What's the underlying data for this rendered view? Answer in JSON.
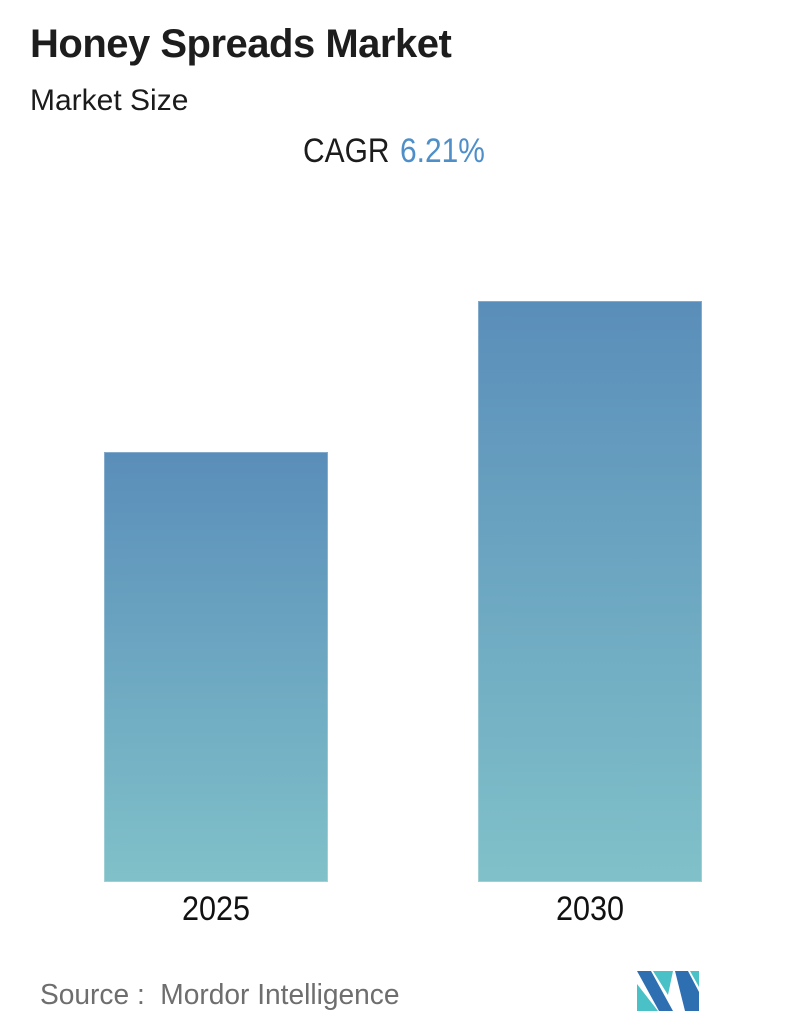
{
  "header": {
    "title": "Honey Spreads Market",
    "subtitle": "Market Size"
  },
  "annotation": {
    "cagr_label": "CAGR",
    "cagr_value": "6.21%"
  },
  "chart_data": {
    "type": "bar",
    "title": "Honey Spreads Market",
    "subtitle": "Market Size",
    "annotation": "CAGR 6.21%",
    "cagr_percent": 6.21,
    "categories": [
      "2025",
      "2030"
    ],
    "values": [
      1.0,
      1.352
    ],
    "values_note": "bars are unlabeled; heights are relative, 2030 ≈ 2025 × (1 + 6.21%)^5",
    "xlabel": "",
    "ylabel": "",
    "ylim": [
      0,
      1.46
    ],
    "grid": false,
    "legend": "none",
    "bar_color_top": "#5a8eba",
    "bar_color_bottom": "#80c1c9"
  },
  "footer": {
    "source_label": "Source :",
    "source_name": "Mordor Intelligence",
    "logo": {
      "blue": "#2e6fb2",
      "teal": "#4ac1c6"
    }
  },
  "colors": {
    "background": "#ffffff",
    "title_text": "#1d1d1d",
    "accent_blue_text": "#4f8fc9",
    "source_text": "#6e6e6e"
  }
}
